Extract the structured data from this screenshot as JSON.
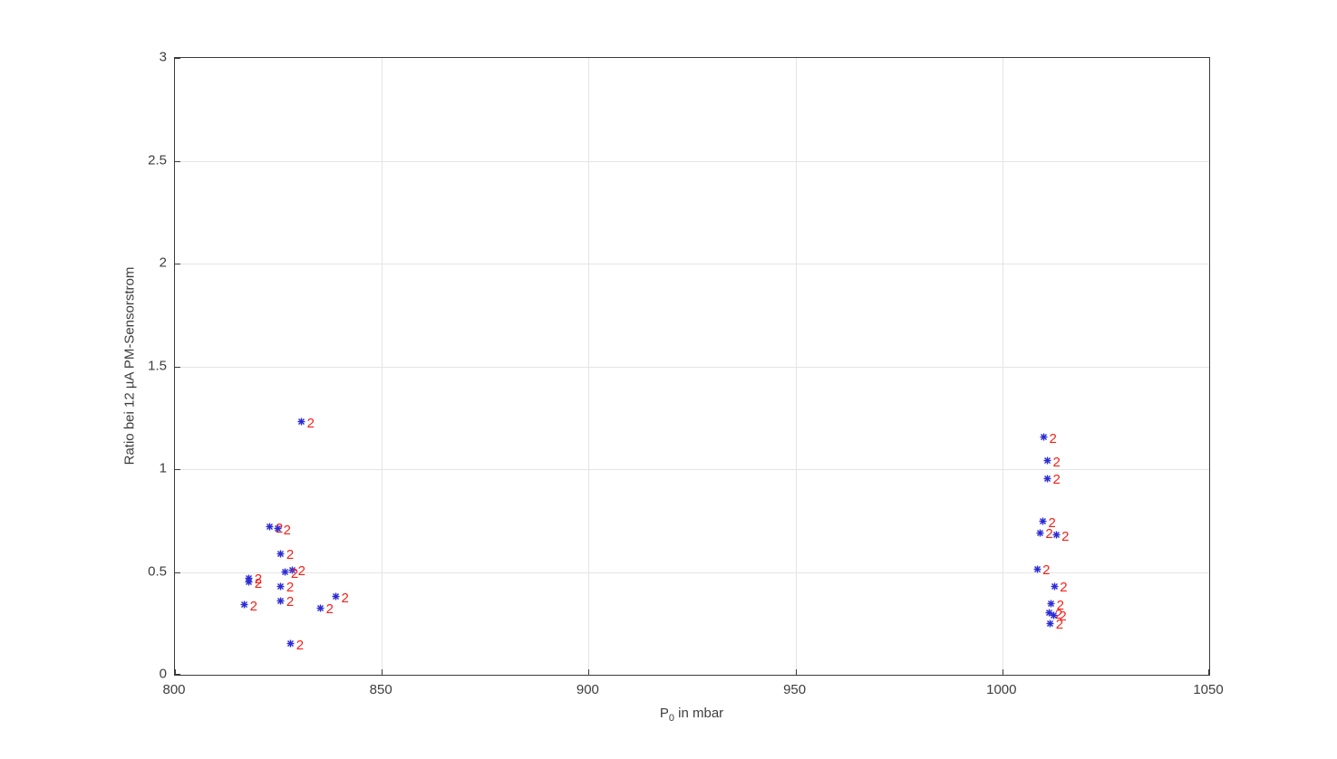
{
  "figure": {
    "background": "#ffffff",
    "axis_color": "#3a3a3a",
    "grid_color": "#e4e4e4",
    "tick_label_color": "#3d3d3d"
  },
  "chart_data": {
    "type": "scatter",
    "title": "",
    "xlabel": "P_0 in mbar",
    "xlabel_parts": {
      "main": "P",
      "sub": "0",
      "rest": " in mbar"
    },
    "ylabel": "Ratio bei 12 µA PM-Sensorstrom",
    "xlim": [
      800,
      1050
    ],
    "ylim": [
      0,
      3
    ],
    "xticks": [
      800,
      850,
      900,
      950,
      1000,
      1050
    ],
    "yticks": [
      0,
      0.5,
      1,
      1.5,
      2,
      2.5,
      3
    ],
    "grid": true,
    "legend": null,
    "marker": {
      "shape": "asterisk",
      "color": "#2b2bd5",
      "size": 9
    },
    "point_label": {
      "text": "2",
      "color": "#f62018"
    },
    "series": [
      {
        "name": "Ratio bei 12 uA",
        "points": [
          [
            830.6,
            1.23
          ],
          [
            823.0,
            0.72
          ],
          [
            824.9,
            0.71
          ],
          [
            825.6,
            0.59
          ],
          [
            828.4,
            0.51
          ],
          [
            826.7,
            0.5
          ],
          [
            817.9,
            0.47
          ],
          [
            817.9,
            0.45
          ],
          [
            825.6,
            0.43
          ],
          [
            825.6,
            0.36
          ],
          [
            816.8,
            0.34
          ],
          [
            838.9,
            0.38
          ],
          [
            835.2,
            0.325
          ],
          [
            828.0,
            0.15
          ],
          [
            1010.0,
            1.155
          ],
          [
            1010.9,
            1.04
          ],
          [
            1010.9,
            0.955
          ],
          [
            1009.8,
            0.745
          ],
          [
            1009.1,
            0.69
          ],
          [
            1013.0,
            0.68
          ],
          [
            1008.4,
            0.515
          ],
          [
            1012.6,
            0.43
          ],
          [
            1011.8,
            0.345
          ],
          [
            1011.4,
            0.3
          ],
          [
            1012.4,
            0.29
          ],
          [
            1011.6,
            0.25
          ]
        ]
      }
    ]
  }
}
